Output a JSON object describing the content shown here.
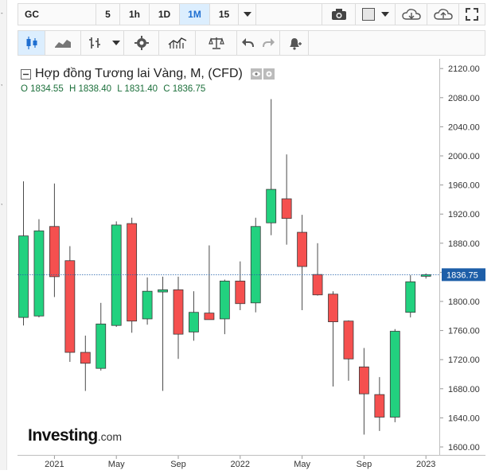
{
  "toolbar": {
    "symbol": "GC",
    "intervals": [
      "5",
      "1h",
      "1D",
      "1M",
      "15"
    ],
    "active_interval": "1M"
  },
  "icons": {
    "intervals_dropdown": "chevron-down-icon",
    "screenshot": "camera-icon",
    "color": "color-square-icon",
    "color_dropdown": "chevron-down-icon",
    "cloud_download": "cloud-download-icon",
    "cloud_upload": "cloud-upload-icon",
    "fullscreen": "fullscreen-icon",
    "candles": "candlestick-icon",
    "area": "area-chart-icon",
    "bars": "ohlc-bars-icon",
    "bars_dropdown": "chevron-down-icon",
    "settings": "gear-icon",
    "indicators": "indicators-icon",
    "compare": "scale-balance-icon",
    "undo": "undo-icon",
    "redo": "redo-icon",
    "alert": "alert-bell-icon"
  },
  "legend": {
    "title": "Hợp đồng Tương lai Vàng, M, (CFD)",
    "o_label": "O",
    "o_value": "1834.55",
    "h_label": "H",
    "h_value": "1838.40",
    "l_label": "L",
    "l_value": "1831.40",
    "c_label": "C",
    "c_value": "1836.75"
  },
  "logo": {
    "text_main": "Investing",
    "text_suffix": ".com"
  },
  "colors": {
    "up": "#22d17f",
    "down": "#f5504f",
    "last_price": "#1d5ea8"
  },
  "chart_data": {
    "type": "candlestick",
    "title": "Hợp đồng Tương lai Vàng, M, (CFD)",
    "y_ticks": [
      1600,
      1640,
      1680,
      1720,
      1760,
      1800,
      1840,
      1880,
      1920,
      1960,
      2000,
      2040,
      2080,
      2120
    ],
    "y_tick_labels": [
      "1600.00",
      "1640.00",
      "1680.00",
      "1720.00",
      "1760.00",
      "1800.00",
      "1840.00",
      "1880.00",
      "1920.00",
      "1960.00",
      "2000.00",
      "2040.00",
      "2080.00",
      "2120.00"
    ],
    "ylim": [
      1600,
      2130
    ],
    "x_ticks": [
      {
        "label": "2021",
        "index": 2
      },
      {
        "label": "May",
        "index": 6
      },
      {
        "label": "Sep",
        "index": 10
      },
      {
        "label": "2022",
        "index": 14
      },
      {
        "label": "May",
        "index": 18
      },
      {
        "label": "Sep",
        "index": 22
      },
      {
        "label": "2023",
        "index": 26
      }
    ],
    "last_price": 1836.75,
    "last_price_label": "1836.75",
    "candles": [
      {
        "o": 1778,
        "h": 1965,
        "l": 1767,
        "c": 1890
      },
      {
        "o": 1780,
        "h": 1913,
        "l": 1778,
        "c": 1897
      },
      {
        "o": 1903,
        "h": 1962,
        "l": 1806,
        "c": 1834
      },
      {
        "o": 1856,
        "h": 1876,
        "l": 1717,
        "c": 1730
      },
      {
        "o": 1730,
        "h": 1753,
        "l": 1677,
        "c": 1715
      },
      {
        "o": 1708,
        "h": 1798,
        "l": 1705,
        "c": 1769
      },
      {
        "o": 1767,
        "h": 1910,
        "l": 1765,
        "c": 1905
      },
      {
        "o": 1907,
        "h": 1915,
        "l": 1757,
        "c": 1773
      },
      {
        "o": 1776,
        "h": 1833,
        "l": 1768,
        "c": 1814
      },
      {
        "o": 1813,
        "h": 1834,
        "l": 1677,
        "c": 1816
      },
      {
        "o": 1816,
        "h": 1834,
        "l": 1721,
        "c": 1755
      },
      {
        "o": 1758,
        "h": 1814,
        "l": 1746,
        "c": 1785
      },
      {
        "o": 1784,
        "h": 1877,
        "l": 1778,
        "c": 1775
      },
      {
        "o": 1776,
        "h": 1830,
        "l": 1755,
        "c": 1828
      },
      {
        "o": 1828,
        "h": 1855,
        "l": 1788,
        "c": 1797
      },
      {
        "o": 1798,
        "h": 1915,
        "l": 1785,
        "c": 1903
      },
      {
        "o": 1908,
        "h": 2078,
        "l": 1891,
        "c": 1954
      },
      {
        "o": 1941,
        "h": 2002,
        "l": 1878,
        "c": 1914
      },
      {
        "o": 1895,
        "h": 1919,
        "l": 1788,
        "c": 1848
      },
      {
        "o": 1837,
        "h": 1880,
        "l": 1808,
        "c": 1809
      },
      {
        "o": 1810,
        "h": 1814,
        "l": 1683,
        "c": 1772
      },
      {
        "o": 1773,
        "h": 1774,
        "l": 1691,
        "c": 1721
      },
      {
        "o": 1710,
        "h": 1736,
        "l": 1617,
        "c": 1673
      },
      {
        "o": 1672,
        "h": 1696,
        "l": 1622,
        "c": 1641
      },
      {
        "o": 1641,
        "h": 1762,
        "l": 1634,
        "c": 1759
      },
      {
        "o": 1785,
        "h": 1836,
        "l": 1778,
        "c": 1827
      },
      {
        "o": 1834.55,
        "h": 1838.4,
        "l": 1831.4,
        "c": 1836.75
      }
    ]
  }
}
